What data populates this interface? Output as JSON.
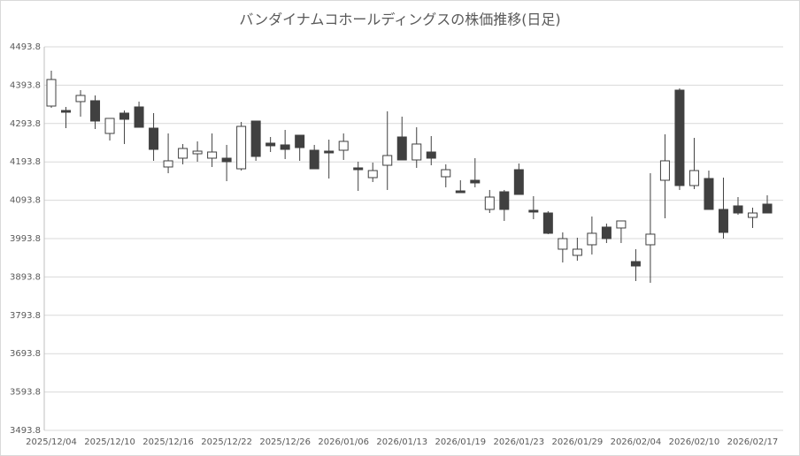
{
  "chart_data": {
    "type": "candlestick",
    "title": "バンダイナムコホールディングスの株価推移(日足)",
    "categories": [
      "2025/12/04",
      null,
      null,
      null,
      "2025/12/10",
      null,
      null,
      null,
      "2025/12/16",
      null,
      null,
      null,
      "2025/12/22",
      null,
      null,
      null,
      "2025/12/26",
      null,
      null,
      null,
      "2026/01/06",
      null,
      null,
      null,
      "2026/01/13",
      null,
      null,
      null,
      "2026/01/19",
      null,
      null,
      null,
      "2026/01/23",
      null,
      null,
      null,
      "2026/01/29",
      null,
      null,
      null,
      "2026/02/04",
      null,
      null,
      null,
      "2026/02/10",
      null,
      null,
      null,
      "2026/02/17",
      null
    ],
    "open": [
      4339.4,
      4327.9,
      4351.0,
      4353.3,
      4268.0,
      4321.0,
      4337.1,
      4281.8,
      4180.5,
      4203.5,
      4215.0,
      4203.5,
      4203.5,
      4175.8,
      4300.3,
      4242.7,
      4238.1,
      4263.4,
      4224.2,
      4221.9,
      4224.2,
      4178.2,
      4152.8,
      4185.0,
      4258.8,
      4198.9,
      4219.6,
      4155.1,
      4118.2,
      4145.9,
      4069.9,
      4115.9,
      4173.5,
      4067.6,
      4060.6,
      3966.2,
      3950.1,
      3977.7,
      4023.8,
      4021.5,
      3933.9,
      3977.7,
      4145.9,
      4380.9,
      4132.1,
      4150.5,
      4069.9,
      4079.1,
      4049.1,
      4083.7
    ],
    "high": [
      4431.6,
      4337.1,
      4380.9,
      4367.1,
      4307.2,
      4327.9,
      4351.0,
      4321.0,
      4268.0,
      4240.4,
      4247.3,
      4268.0,
      4238.1,
      4298.0,
      4300.3,
      4258.8,
      4277.2,
      4263.4,
      4238.1,
      4251.9,
      4268.0,
      4194.3,
      4192.0,
      4325.6,
      4311.8,
      4284.1,
      4261.1,
      4187.4,
      4145.9,
      4203.5,
      4120.6,
      4120.6,
      4189.7,
      4104.4,
      4065.3,
      4010.0,
      3996.1,
      4051.4,
      4033.0,
      4039.9,
      3966.2,
      4164.3,
      4265.7,
      4385.5,
      4256.5,
      4171.2,
      4152.8,
      4102.1,
      4074.5,
      4106.7
    ],
    "low": [
      4334.8,
      4281.8,
      4311.8,
      4279.5,
      4249.6,
      4240.4,
      4284.1,
      4196.6,
      4164.3,
      4187.4,
      4194.3,
      4180.5,
      4143.6,
      4171.2,
      4196.6,
      4219.6,
      4201.2,
      4196.6,
      4175.8,
      4150.5,
      4198.9,
      4118.2,
      4141.3,
      4120.6,
      4198.9,
      4178.2,
      4185.0,
      4127.5,
      4113.6,
      4127.5,
      4060.6,
      4039.9,
      4109.0,
      4044.5,
      4005.4,
      3931.6,
      3936.2,
      3952.4,
      3982.3,
      3982.3,
      3883.2,
      3878.6,
      4046.8,
      4120.6,
      4122.9,
      4069.9,
      3993.8,
      4056.0,
      4021.5,
      4060.6
    ],
    "close": [
      4408.6,
      4323.3,
      4367.1,
      4300.3,
      4307.2,
      4304.9,
      4284.1,
      4226.5,
      4196.6,
      4228.8,
      4221.9,
      4219.6,
      4194.3,
      4286.4,
      4208.1,
      4235.8,
      4226.5,
      4231.1,
      4175.8,
      4217.3,
      4247.3,
      4173.5,
      4171.2,
      4210.4,
      4198.9,
      4240.4,
      4203.5,
      4173.5,
      4113.6,
      4139.0,
      4102.1,
      4069.9,
      4109.0,
      4063.0,
      4007.7,
      3993.8,
      3966.2,
      4007.7,
      3993.8,
      4039.9,
      3922.4,
      4005.4,
      4196.6,
      4132.1,
      4171.2,
      4069.9,
      4010.0,
      4060.6,
      4060.6,
      4060.6
    ],
    "up_color": "#ffffff",
    "down_color": "#404040",
    "edge_color": "#404040",
    "ylim": [
      3493.8,
      4493.8
    ],
    "yticks": [
      3493.8,
      3593.8,
      3693.8,
      3793.8,
      3893.8,
      3993.8,
      4093.8,
      4193.8,
      4293.8,
      4393.8,
      4493.8
    ],
    "grid": true
  }
}
